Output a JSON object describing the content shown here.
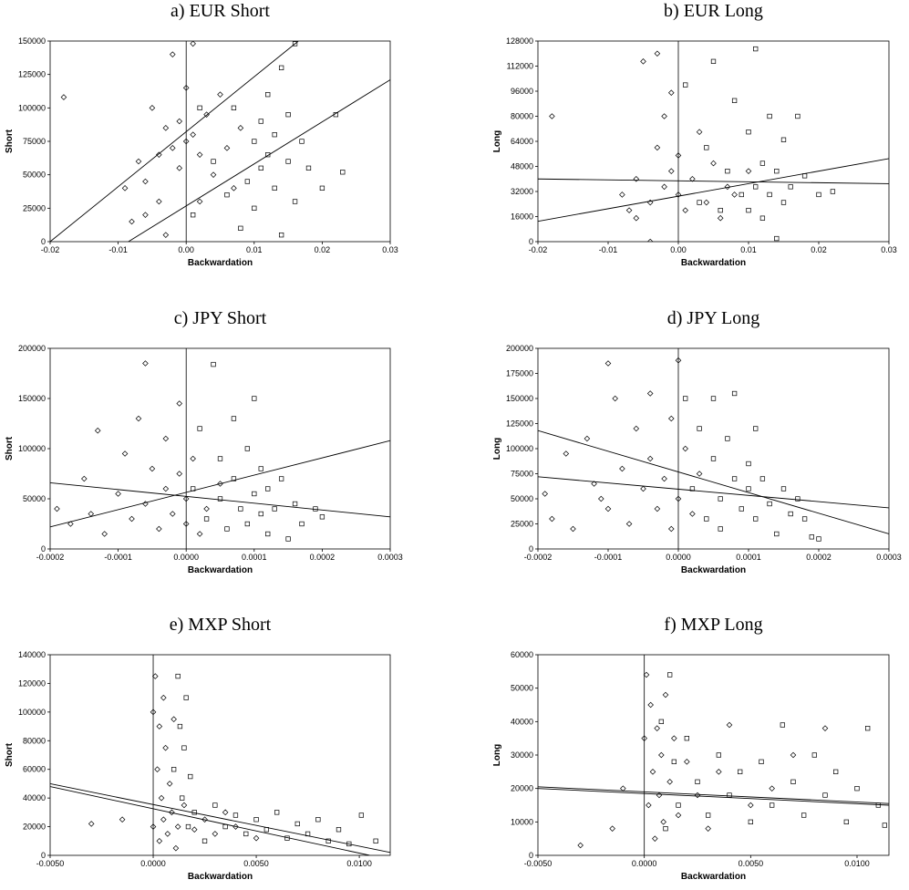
{
  "chart_data": [
    {
      "type": "scatter",
      "title": "a) EUR Short",
      "xlabel": "Backwardation",
      "ylabel": "Short",
      "xlim": [
        -0.02,
        0.03
      ],
      "ylim": [
        0,
        150000
      ],
      "xticks": [
        -0.02,
        -0.01,
        {
          "value": 0,
          "label": "0.00"
        },
        0.01,
        0.02,
        0.03
      ],
      "yticks": [
        0,
        25000,
        50000,
        75000,
        100000,
        125000,
        150000
      ],
      "series": [
        {
          "marker": "diamond",
          "x": [
            -0.018,
            -0.009,
            -0.008,
            -0.007,
            -0.006,
            -0.005,
            -0.004,
            -0.003,
            -0.003,
            -0.002,
            -0.002,
            -0.001,
            -0.001,
            0,
            0,
            0.001,
            0.001,
            0.002,
            0.003,
            0.004,
            0.005,
            0.006,
            0.007,
            0.008,
            -0.006,
            -0.004,
            0.002
          ],
          "values": [
            108000,
            40000,
            15000,
            60000,
            45000,
            100000,
            30000,
            85000,
            5000,
            70000,
            140000,
            90000,
            55000,
            75000,
            115000,
            148000,
            80000,
            65000,
            95000,
            50000,
            110000,
            70000,
            40000,
            85000,
            20000,
            65000,
            30000
          ]
        },
        {
          "marker": "square",
          "x": [
            0.001,
            0.002,
            0.004,
            0.006,
            0.007,
            0.008,
            0.009,
            0.01,
            0.01,
            0.011,
            0.011,
            0.012,
            0.012,
            0.013,
            0.013,
            0.014,
            0.014,
            0.015,
            0.015,
            0.016,
            0.016,
            0.017,
            0.018,
            0.02,
            0.022,
            0.023
          ],
          "values": [
            20000,
            100000,
            60000,
            35000,
            100000,
            10000,
            45000,
            75000,
            25000,
            90000,
            55000,
            65000,
            110000,
            80000,
            40000,
            130000,
            5000,
            95000,
            60000,
            148000,
            30000,
            75000,
            55000,
            40000,
            95000,
            52000
          ]
        }
      ],
      "lines": [
        {
          "x": [
            -0.02,
            0.0165
          ],
          "values": [
            0,
            150000
          ]
        },
        {
          "x": [
            -0.0085,
            0.03
          ],
          "values": [
            0,
            121000
          ]
        }
      ]
    },
    {
      "type": "scatter",
      "title": "b) EUR Long",
      "xlabel": "Backwardation",
      "ylabel": "Long",
      "xlim": [
        -0.02,
        0.03
      ],
      "ylim": [
        0,
        128000
      ],
      "xticks": [
        -0.02,
        -0.01,
        {
          "value": 0,
          "label": "0.00"
        },
        0.01,
        0.02,
        0.03
      ],
      "yticks": [
        0,
        16000,
        32000,
        48000,
        64000,
        80000,
        96000,
        112000,
        128000
      ],
      "series": [
        {
          "marker": "diamond",
          "x": [
            -0.018,
            -0.008,
            -0.007,
            -0.006,
            -0.005,
            -0.004,
            -0.004,
            -0.003,
            -0.003,
            -0.002,
            -0.002,
            -0.001,
            -0.001,
            0,
            0,
            0.001,
            0.002,
            0.003,
            0.004,
            0.005,
            0.006,
            0.007,
            0.008,
            0.01,
            -0.006
          ],
          "values": [
            80000,
            30000,
            20000,
            40000,
            115000,
            25000,
            0,
            60000,
            120000,
            35000,
            80000,
            45000,
            95000,
            30000,
            55000,
            20000,
            40000,
            70000,
            25000,
            50000,
            15000,
            35000,
            30000,
            45000,
            15000
          ]
        },
        {
          "marker": "square",
          "x": [
            0.001,
            0.003,
            0.004,
            0.005,
            0.006,
            0.007,
            0.008,
            0.009,
            0.01,
            0.01,
            0.011,
            0.011,
            0.012,
            0.012,
            0.013,
            0.013,
            0.014,
            0.014,
            0.015,
            0.015,
            0.016,
            0.017,
            0.018,
            0.02,
            0.022
          ],
          "values": [
            100000,
            25000,
            60000,
            115000,
            20000,
            45000,
            90000,
            30000,
            70000,
            20000,
            35000,
            123000,
            50000,
            15000,
            80000,
            30000,
            45000,
            2000,
            65000,
            25000,
            35000,
            80000,
            42000,
            30000,
            32000
          ]
        }
      ],
      "lines": [
        {
          "x": [
            -0.02,
            0.03
          ],
          "values": [
            13000,
            53000
          ]
        },
        {
          "x": [
            -0.02,
            0.03
          ],
          "values": [
            40000,
            37000
          ]
        }
      ]
    },
    {
      "type": "scatter",
      "title": "c) JPY Short",
      "xlabel": "Backwardation",
      "ylabel": "Short",
      "xlim": [
        -0.0002,
        0.0003
      ],
      "ylim": [
        0,
        200000
      ],
      "xticks": [
        -0.0002,
        -0.0001,
        {
          "value": 0,
          "label": "0.0000"
        },
        0.0001,
        0.0002,
        0.0003
      ],
      "yticks": [
        0,
        50000,
        100000,
        150000,
        200000
      ],
      "series": [
        {
          "marker": "diamond",
          "x": [
            -0.00019,
            -0.00017,
            -0.00015,
            -0.00013,
            -0.00012,
            -0.0001,
            -9e-05,
            -8e-05,
            -7e-05,
            -6e-05,
            -6e-05,
            -5e-05,
            -4e-05,
            -3e-05,
            -3e-05,
            -2e-05,
            -1e-05,
            -1e-05,
            0,
            0,
            1e-05,
            2e-05,
            3e-05,
            5e-05,
            -0.00014
          ],
          "values": [
            40000,
            25000,
            70000,
            118000,
            15000,
            55000,
            95000,
            30000,
            130000,
            185000,
            45000,
            80000,
            20000,
            110000,
            60000,
            35000,
            145000,
            75000,
            25000,
            50000,
            90000,
            15000,
            40000,
            65000,
            35000
          ]
        },
        {
          "marker": "square",
          "x": [
            1e-05,
            2e-05,
            3e-05,
            4e-05,
            5e-05,
            5e-05,
            6e-05,
            7e-05,
            7e-05,
            8e-05,
            9e-05,
            9e-05,
            0.0001,
            0.0001,
            0.00011,
            0.00011,
            0.00012,
            0.00012,
            0.00013,
            0.00014,
            0.00015,
            0.00016,
            0.00017,
            0.00019,
            0.0002
          ],
          "values": [
            60000,
            120000,
            30000,
            184000,
            50000,
            90000,
            20000,
            70000,
            130000,
            40000,
            100000,
            25000,
            55000,
            150000,
            35000,
            80000,
            15000,
            60000,
            40000,
            70000,
            10000,
            45000,
            25000,
            40000,
            32000
          ]
        }
      ],
      "lines": [
        {
          "x": [
            -0.0002,
            0.0003
          ],
          "values": [
            22000,
            108000
          ]
        },
        {
          "x": [
            -0.0002,
            0.0003
          ],
          "values": [
            66000,
            32000
          ]
        }
      ]
    },
    {
      "type": "scatter",
      "title": "d) JPY Long",
      "xlabel": "Backwardation",
      "ylabel": "Long",
      "xlim": [
        -0.0002,
        0.0003
      ],
      "ylim": [
        0,
        200000
      ],
      "xticks": [
        -0.0002,
        -0.0001,
        {
          "value": 0,
          "label": "0.0000"
        },
        0.0001,
        0.0002,
        0.0003
      ],
      "yticks": [
        0,
        25000,
        50000,
        75000,
        100000,
        125000,
        150000,
        175000,
        200000
      ],
      "series": [
        {
          "marker": "diamond",
          "x": [
            -0.00019,
            -0.00018,
            -0.00016,
            -0.00015,
            -0.00013,
            -0.00012,
            -0.0001,
            -0.0001,
            -9e-05,
            -8e-05,
            -7e-05,
            -6e-05,
            -5e-05,
            -4e-05,
            -4e-05,
            -3e-05,
            -2e-05,
            -1e-05,
            -1e-05,
            0,
            0,
            1e-05,
            2e-05,
            3e-05,
            -0.00011
          ],
          "values": [
            55000,
            30000,
            95000,
            20000,
            110000,
            65000,
            185000,
            40000,
            150000,
            80000,
            25000,
            120000,
            60000,
            155000,
            90000,
            40000,
            70000,
            130000,
            20000,
            50000,
            188000,
            100000,
            35000,
            75000,
            50000
          ]
        },
        {
          "marker": "square",
          "x": [
            1e-05,
            2e-05,
            3e-05,
            4e-05,
            5e-05,
            5e-05,
            6e-05,
            6e-05,
            7e-05,
            8e-05,
            8e-05,
            9e-05,
            0.0001,
            0.0001,
            0.00011,
            0.00011,
            0.00012,
            0.00013,
            0.00014,
            0.00015,
            0.00016,
            0.00017,
            0.00018,
            0.00019,
            0.0002
          ],
          "values": [
            150000,
            60000,
            120000,
            30000,
            90000,
            150000,
            50000,
            20000,
            110000,
            70000,
            155000,
            40000,
            85000,
            60000,
            120000,
            30000,
            70000,
            45000,
            15000,
            60000,
            35000,
            50000,
            30000,
            12000,
            10000
          ]
        }
      ],
      "lines": [
        {
          "x": [
            -0.0002,
            0.0003
          ],
          "values": [
            118000,
            15000
          ]
        },
        {
          "x": [
            -0.0002,
            0.0003
          ],
          "values": [
            72000,
            41000
          ]
        }
      ]
    },
    {
      "type": "scatter",
      "title": "e) MXP Short",
      "xlabel": "Backwardation",
      "ylabel": "Short",
      "xlim": [
        -0.005,
        0.0115
      ],
      "ylim": [
        0,
        140000
      ],
      "xticks": [
        {
          "value": -0.005,
          "label": "-0.0050"
        },
        {
          "value": 0,
          "label": "0.0000"
        },
        {
          "value": 0.005,
          "label": "0.0050"
        },
        {
          "value": 0.01,
          "label": "0.0100"
        }
      ],
      "yticks": [
        0,
        20000,
        40000,
        60000,
        80000,
        100000,
        120000,
        140000
      ],
      "series": [
        {
          "marker": "diamond",
          "x": [
            -0.003,
            -0.0015,
            0,
            0,
            0.0001,
            0.0002,
            0.0003,
            0.0003,
            0.0004,
            0.0005,
            0.0005,
            0.0006,
            0.0007,
            0.0008,
            0.0009,
            0.001,
            0.0011,
            0.0012,
            0.0015,
            0.002,
            0.0025,
            0.003,
            0.0035,
            0.004,
            0.005
          ],
          "values": [
            22000,
            25000,
            100000,
            20000,
            125000,
            60000,
            90000,
            10000,
            40000,
            110000,
            25000,
            75000,
            15000,
            50000,
            30000,
            95000,
            5000,
            20000,
            35000,
            18000,
            25000,
            15000,
            30000,
            20000,
            12000
          ]
        },
        {
          "marker": "square",
          "x": [
            0.001,
            0.0012,
            0.0013,
            0.0014,
            0.0015,
            0.0016,
            0.0017,
            0.0018,
            0.002,
            0.0025,
            0.003,
            0.0035,
            0.004,
            0.0045,
            0.005,
            0.0055,
            0.006,
            0.0065,
            0.007,
            0.0075,
            0.008,
            0.0085,
            0.009,
            0.0095,
            0.0101,
            0.0108
          ],
          "values": [
            60000,
            125000,
            90000,
            40000,
            75000,
            110000,
            20000,
            55000,
            30000,
            10000,
            35000,
            20000,
            28000,
            15000,
            25000,
            18000,
            30000,
            12000,
            22000,
            15000,
            25000,
            10000,
            18000,
            8000,
            28000,
            10000
          ]
        }
      ],
      "lines": [
        {
          "x": [
            -0.005,
            0.0115
          ],
          "values": [
            50000,
            2000
          ]
        },
        {
          "x": [
            -0.005,
            0.0105
          ],
          "values": [
            48000,
            0
          ]
        }
      ]
    },
    {
      "type": "scatter",
      "title": "f) MXP Long",
      "xlabel": "Backwardation",
      "ylabel": "Long",
      "xlim": [
        -0.005,
        0.0115
      ],
      "ylim": [
        0,
        60000
      ],
      "xticks": [
        {
          "value": -0.005,
          "label": "-0.0050"
        },
        {
          "value": 0,
          "label": "0.0000"
        },
        {
          "value": 0.005,
          "label": "0.0050"
        },
        {
          "value": 0.01,
          "label": "0.0100"
        }
      ],
      "yticks": [
        0,
        10000,
        20000,
        30000,
        40000,
        50000,
        60000
      ],
      "series": [
        {
          "marker": "diamond",
          "x": [
            -0.003,
            -0.0015,
            -0.001,
            0,
            0.0001,
            0.0002,
            0.0003,
            0.0004,
            0.0005,
            0.0006,
            0.0007,
            0.0008,
            0.0009,
            0.001,
            0.0012,
            0.0014,
            0.0016,
            0.002,
            0.0025,
            0.003,
            0.0035,
            0.004,
            0.005,
            0.006,
            0.007,
            0.0085
          ],
          "values": [
            3000,
            8000,
            20000,
            35000,
            54000,
            15000,
            45000,
            25000,
            5000,
            38000,
            18000,
            30000,
            10000,
            48000,
            22000,
            35000,
            12000,
            28000,
            18000,
            8000,
            25000,
            39000,
            15000,
            20000,
            30000,
            38000
          ]
        },
        {
          "marker": "square",
          "x": [
            0.0008,
            0.001,
            0.0012,
            0.0014,
            0.0016,
            0.002,
            0.0025,
            0.003,
            0.0035,
            0.004,
            0.0045,
            0.005,
            0.0055,
            0.006,
            0.0065,
            0.007,
            0.0075,
            0.008,
            0.0085,
            0.009,
            0.0095,
            0.01,
            0.0105,
            0.011,
            0.0113
          ],
          "values": [
            40000,
            8000,
            54000,
            28000,
            15000,
            35000,
            22000,
            12000,
            30000,
            18000,
            25000,
            10000,
            28000,
            15000,
            39000,
            22000,
            12000,
            30000,
            18000,
            25000,
            10000,
            20000,
            38000,
            15000,
            9000
          ]
        }
      ],
      "lines": [
        {
          "x": [
            -0.005,
            0.0115
          ],
          "values": [
            20500,
            15500
          ]
        },
        {
          "x": [
            -0.005,
            0.0115
          ],
          "values": [
            20000,
            15000
          ]
        }
      ]
    }
  ]
}
